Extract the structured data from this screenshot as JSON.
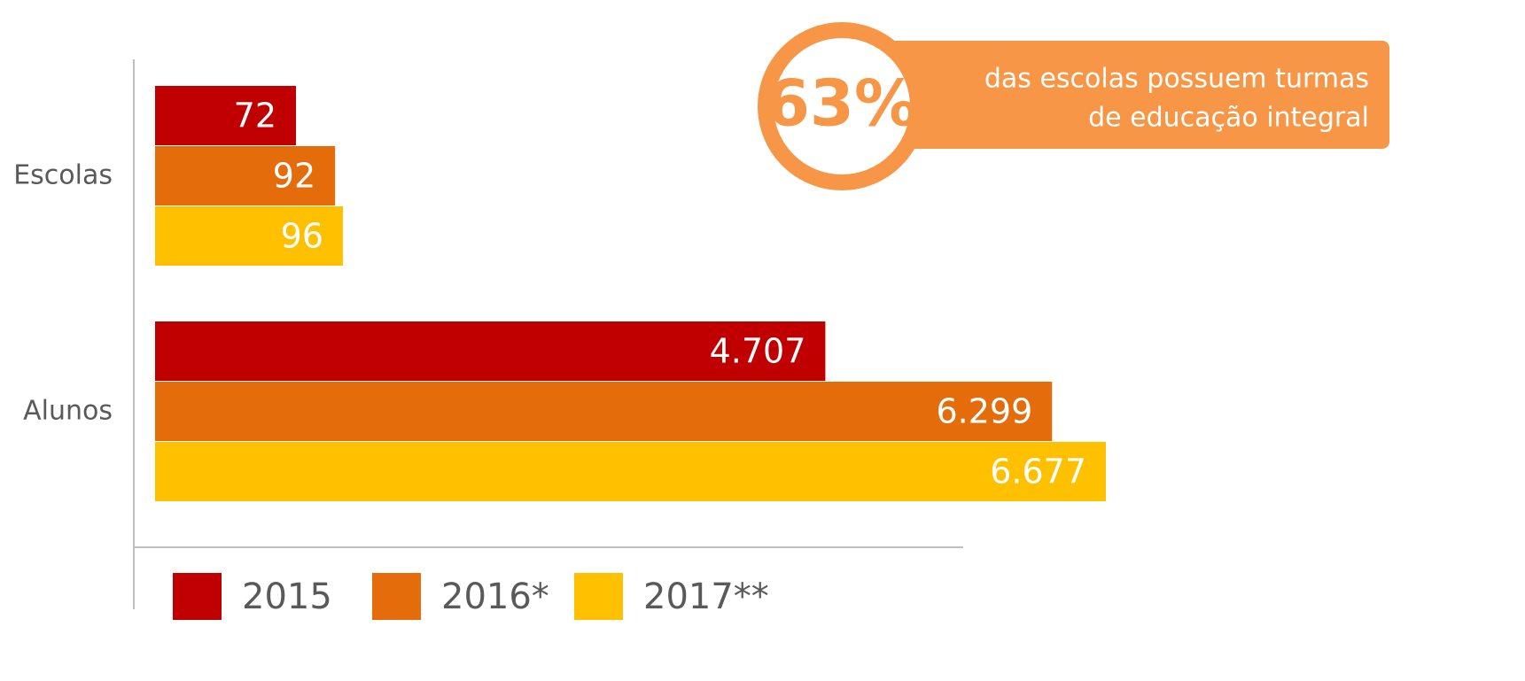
{
  "chart_data": {
    "type": "bar",
    "orientation": "horizontal",
    "categories": [
      "Escolas",
      "Alunos"
    ],
    "series": [
      {
        "name": "2015",
        "color": "#c00000",
        "values": [
          72,
          4707
        ],
        "value_labels": [
          "72",
          "4.707"
        ]
      },
      {
        "name": "2016*",
        "color": "#e46c0a",
        "values": [
          92,
          6299
        ],
        "value_labels": [
          "92",
          "6.299"
        ]
      },
      {
        "name": "2017**",
        "color": "#ffc000",
        "values": [
          96,
          6677
        ],
        "value_labels": [
          "96",
          "6.677"
        ]
      }
    ],
    "annotation": {
      "label": "63%",
      "text": [
        "das escolas possuem turmas",
        "de educação integral"
      ]
    },
    "legend": "bottom"
  }
}
